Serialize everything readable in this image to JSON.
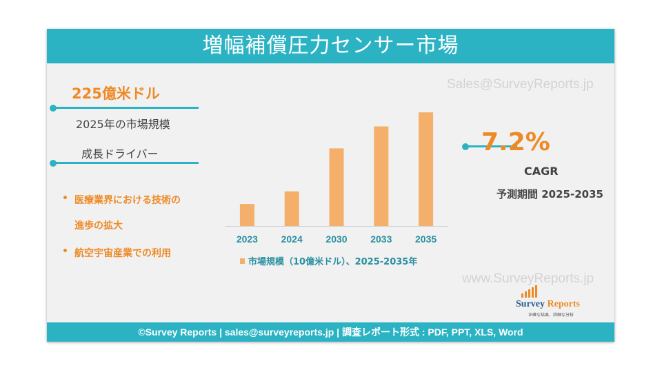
{
  "title": "増幅補償圧力センサー市場",
  "watermark_email": "Sales@SurveyReports.jp",
  "watermark_url": "www.SurveyReports.jp",
  "market_value": "225億米ドル",
  "market_value_label": "2025年の市場規模",
  "growth_drivers_label": "成長ドライバー",
  "drivers": [
    "医療業界における技術の",
    "進歩の拡大",
    "航空宇宙産業での利用"
  ],
  "cagr_value": "7.2%",
  "cagr_label": "CAGR",
  "forecast_period": "予測期間 2025-2035",
  "logo": {
    "name_part1": "Survey",
    "name_part2": " Reports",
    "tagline": "正確な結果、詳細な分析"
  },
  "footer": "©Survey Reports | sales@surveyreports.jp |  調査レポート形式 : PDF, PPT, XLS, Word",
  "colors": {
    "teal": "#2bb3c4",
    "orange": "#ee8a26",
    "bar": "#f4b06a",
    "background": "#f1f1f1"
  },
  "chart_data": {
    "type": "bar",
    "categories": [
      "2023",
      "2024",
      "2030",
      "2033",
      "2035"
    ],
    "series": [
      {
        "name": "市場規模（10億米ドル）、2025-2035年",
        "values": [
          7.5,
          11.8,
          26.5,
          34.0,
          38.8
        ]
      }
    ],
    "ylim": [
      0,
      40
    ],
    "grid": false,
    "legend_position": "bottom"
  }
}
